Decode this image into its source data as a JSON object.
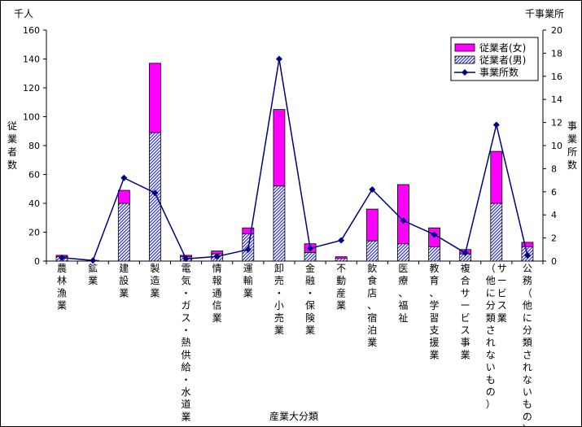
{
  "chart_data": {
    "type": "bar",
    "y_left_unit": "千人",
    "y_right_unit": "千事業所",
    "y_left_label": "従業者数",
    "y_right_label": "事業所数",
    "xlabel": "産業大分類",
    "ylim_left": [
      0,
      160
    ],
    "ylim_right": [
      0,
      20
    ],
    "y_left_ticks": [
      0,
      20,
      40,
      60,
      80,
      100,
      120,
      140,
      160
    ],
    "y_right_ticks": [
      0,
      2,
      4,
      6,
      8,
      10,
      12,
      14,
      16,
      18,
      20
    ],
    "categories": [
      "農林漁業",
      "鉱業",
      "建設業",
      "製造業",
      "電気・ガス・熱供給・水道業",
      "情報通信業",
      "運輸業",
      "卸売・小売業",
      "金融・保険業",
      "不動産業",
      "飲食店、宿泊業",
      "医療、福祉",
      "教育、学習支援業",
      "複合サービス事業",
      "サービス業（他に分類されないもの）",
      "公務（他に分類されないもの）"
    ],
    "series": [
      {
        "name": "従業者(女)",
        "type": "bar-stacked",
        "axis": "left",
        "color": "#ff00ff",
        "values": [
          1,
          0,
          9,
          48,
          1,
          2,
          4,
          53,
          6,
          1,
          22,
          41,
          13,
          3,
          36,
          3
        ]
      },
      {
        "name": "従業者(男)",
        "type": "bar-stacked",
        "axis": "left",
        "color": "#3333cc",
        "values": [
          3,
          0.5,
          40,
          89,
          3,
          5,
          19,
          52,
          6,
          2,
          14,
          12,
          10,
          5,
          40,
          10
        ]
      },
      {
        "name": "事業所数",
        "type": "line",
        "axis": "right",
        "color": "#000080",
        "values": [
          0.3,
          0.05,
          7.2,
          5.9,
          0.2,
          0.4,
          1.0,
          17.5,
          1.1,
          1.8,
          6.2,
          3.5,
          2.3,
          0.7,
          11.8,
          0.5
        ]
      }
    ],
    "legend_position": "top-right",
    "grid": false
  }
}
